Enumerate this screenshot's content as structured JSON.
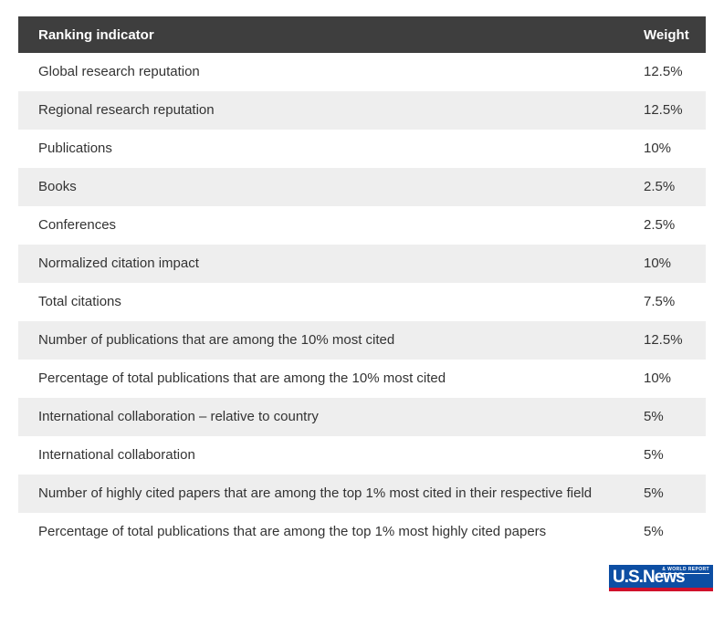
{
  "table": {
    "headers": {
      "indicator": "Ranking indicator",
      "weight": "Weight"
    },
    "rows": [
      {
        "indicator": "Global research reputation",
        "weight": "12.5%"
      },
      {
        "indicator": "Regional research reputation",
        "weight": "12.5%"
      },
      {
        "indicator": "Publications",
        "weight": "10%"
      },
      {
        "indicator": "Books",
        "weight": "2.5%"
      },
      {
        "indicator": "Conferences",
        "weight": "2.5%"
      },
      {
        "indicator": "Normalized citation impact",
        "weight": "10%"
      },
      {
        "indicator": "Total citations",
        "weight": "7.5%"
      },
      {
        "indicator": "Number of publications that are among the 10% most cited",
        "weight": "12.5%"
      },
      {
        "indicator": "Percentage of total publications that are among the 10% most cited",
        "weight": "10%"
      },
      {
        "indicator": "International collaboration – relative to country",
        "weight": "5%"
      },
      {
        "indicator": "International collaboration",
        "weight": "5%"
      },
      {
        "indicator": "Number of highly cited papers that are among the top 1% most cited in their respective field",
        "weight": "5%"
      },
      {
        "indicator": "Percentage of total publications that are among the top 1% most highly cited papers",
        "weight": "5%"
      }
    ]
  },
  "logo": {
    "main": "U.S.News",
    "tagline": "& WORLD REPORT"
  },
  "colors": {
    "header_bg": "#3e3e3e",
    "header_text": "#ffffff",
    "row_alt_bg": "#eeeeee",
    "row_bg": "#ffffff",
    "text": "#333333",
    "logo_blue": "#0d4ea3",
    "logo_red": "#d0112b"
  }
}
